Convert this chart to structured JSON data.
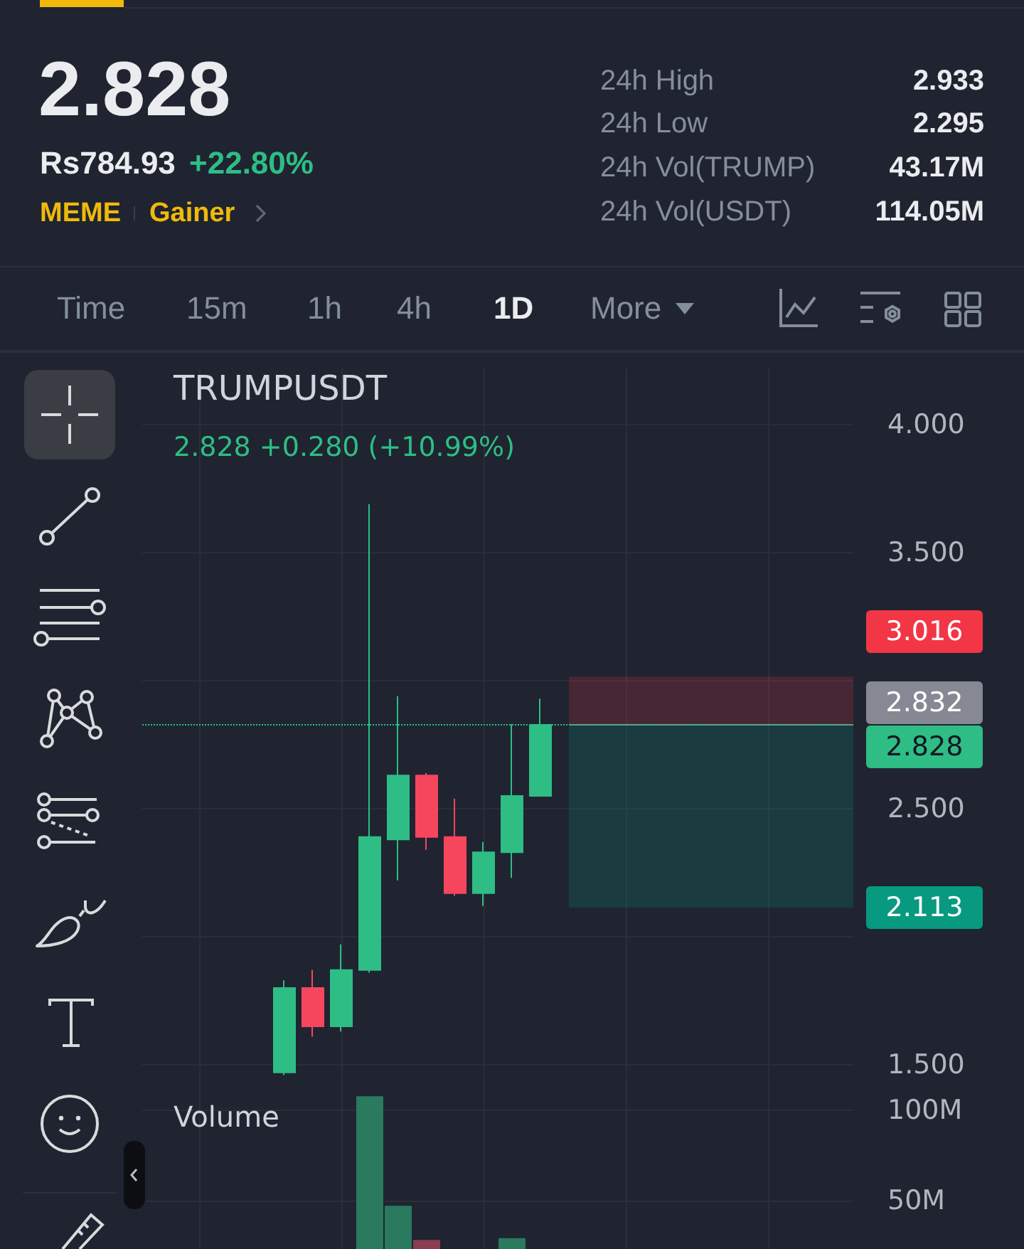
{
  "chart_data": [
    {
      "type": "other",
      "title": "2.828",
      "annotations": [
        "Rs784.93",
        "+22.80%",
        "MEME",
        "Gainer",
        "24h High",
        "2.933",
        "24h Low",
        "2.295",
        "24h Vol(TRUMP)",
        "43.17M",
        "24h Vol(USDT)",
        "114.05M",
        "Time",
        "15m",
        "1h",
        "4h",
        "1D",
        "More"
      ]
    },
    {
      "type": "candlestick",
      "title": "TRUMPUSDT",
      "subtitle": "2.828 +0.280 (+10.99%)",
      "categories": [
        null,
        null,
        null,
        null,
        null,
        null,
        null,
        null,
        null,
        null,
        null,
        null,
        null,
        null,
        null,
        null,
        null,
        null,
        null,
        null,
        null,
        null,
        null,
        null,
        null,
        null
      ],
      "ohlc": [
        null,
        null,
        null,
        null,
        null,
        [
          1.47,
          1.83,
          1.46,
          1.8
        ],
        [
          1.8,
          1.87,
          1.61,
          1.65
        ],
        [
          1.65,
          1.97,
          1.63,
          1.87
        ],
        [
          1.87,
          3.69,
          1.86,
          2.39
        ],
        [
          2.38,
          2.94,
          2.22,
          2.63
        ],
        [
          2.63,
          2.64,
          2.34,
          2.39
        ],
        [
          2.39,
          2.54,
          2.16,
          2.17
        ],
        [
          2.17,
          2.37,
          2.12,
          2.33
        ],
        [
          2.33,
          2.83,
          2.23,
          2.55
        ],
        [
          2.55,
          2.93,
          2.55,
          2.828
        ],
        null,
        null,
        null,
        null,
        null,
        null,
        null,
        null,
        null,
        null,
        null
      ],
      "colors": [
        null,
        null,
        null,
        null,
        null,
        "#2ebd85",
        "#f6465d",
        "#2ebd85",
        "#2ebd85",
        "#2ebd85",
        "#f6465d",
        "#f6465d",
        "#2ebd85",
        "#2ebd85",
        "#2ebd85",
        null,
        null,
        null,
        null,
        null,
        null,
        null,
        null,
        null,
        null,
        null
      ],
      "ylim": [
        1.45,
        4.22
      ],
      "yticks": [
        {
          "value": 1.5,
          "label": "1.500"
        },
        {
          "value": 2,
          "label": null
        },
        {
          "value": 2.5,
          "label": "2.500"
        },
        {
          "value": 3,
          "label": null
        },
        {
          "value": 3.5,
          "label": "3.500"
        },
        {
          "value": 4,
          "label": "4.000"
        }
      ],
      "grid": true,
      "tick_labels": "y",
      "ref_lines": [
        {
          "axis": "y",
          "value": 2.828,
          "label": "2.828",
          "color": "#2ebd85",
          "line_style": "dotted"
        },
        {
          "axis": "y",
          "value": 2.832,
          "label": "2.832",
          "color": "#868993"
        }
      ],
      "bands": [
        {
          "axis": "y",
          "from": 2.832,
          "to": 3.016,
          "label": "3.016",
          "color": "#f23645"
        },
        {
          "axis": "y",
          "from": 2.832,
          "to": 2.113,
          "label": "2.113",
          "color": "#089981"
        }
      ]
    },
    {
      "type": "bar",
      "title": "Volume",
      "categories": [
        null,
        null,
        null,
        null,
        null,
        null,
        null,
        null,
        null,
        null,
        null,
        null,
        null,
        null,
        null,
        null,
        null,
        null,
        null,
        null,
        null,
        null,
        null,
        null,
        null,
        null
      ],
      "values": [
        null,
        null,
        null,
        null,
        null,
        null,
        null,
        null,
        108,
        47,
        28,
        null,
        null,
        29,
        null,
        null,
        null,
        null,
        null,
        null,
        null,
        null,
        null,
        null,
        null,
        null
      ],
      "colors": [
        null,
        null,
        null,
        null,
        null,
        null,
        null,
        null,
        "#2a7a60",
        "#2a7a60",
        "#8b3d52",
        null,
        null,
        "#2a7a60",
        null,
        null,
        null,
        null,
        null,
        null,
        null,
        null,
        null,
        null,
        null,
        null
      ],
      "ylim": [
        23,
        118
      ],
      "yticks": [
        {
          "value": 50,
          "label": "50M"
        },
        {
          "value": 100,
          "label": "100M"
        }
      ],
      "grid": true,
      "tick_labels": "y"
    }
  ]
}
